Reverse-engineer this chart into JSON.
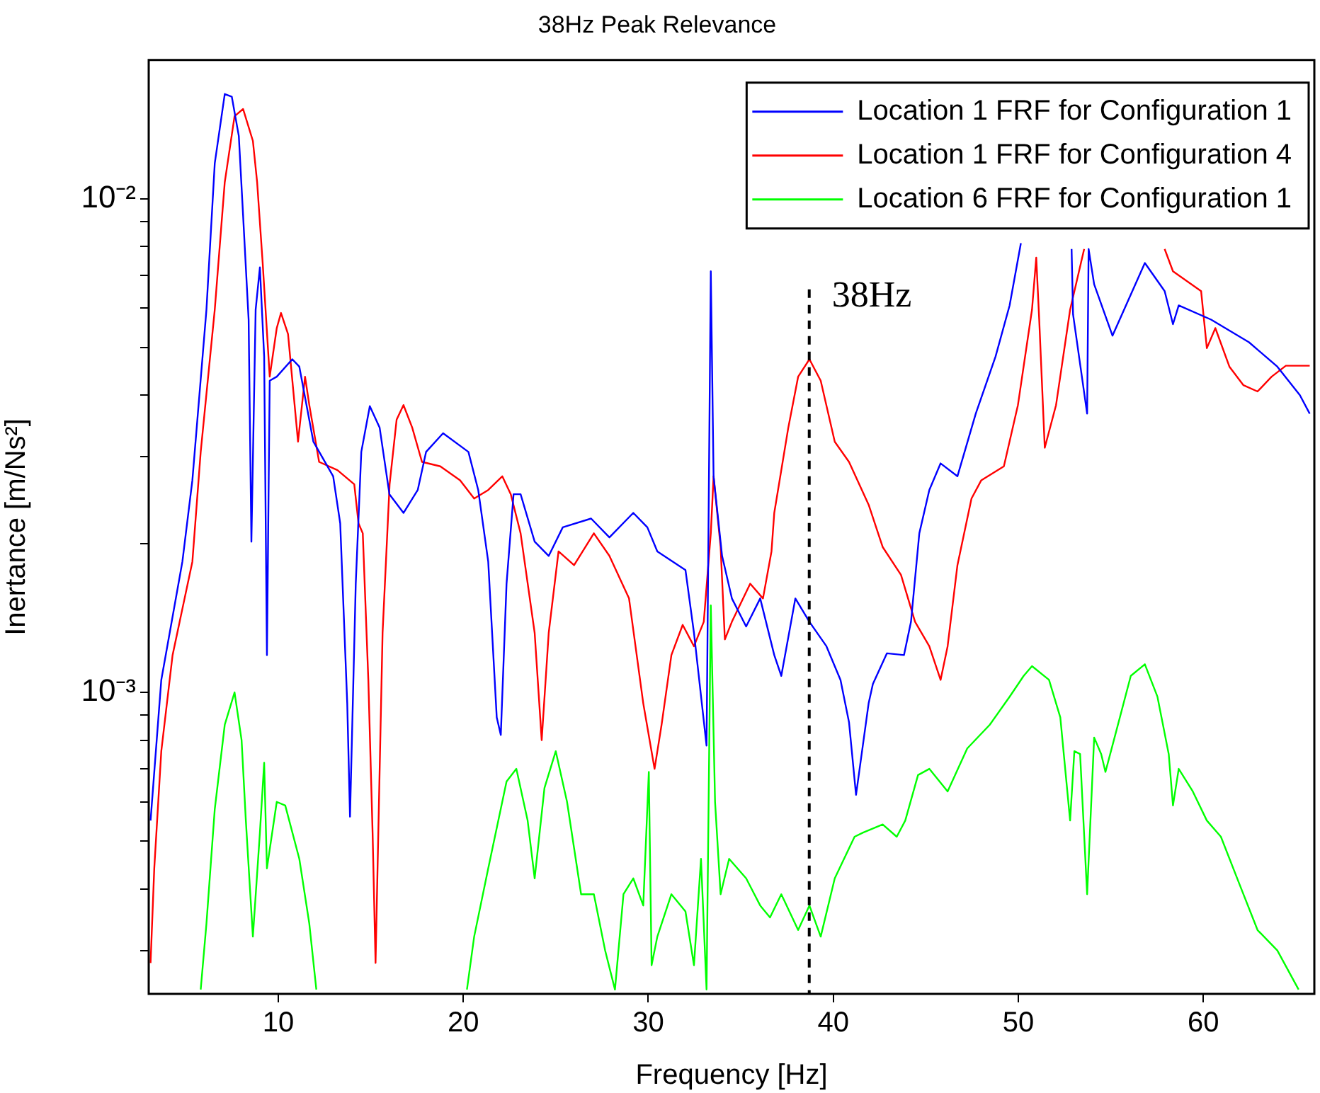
{
  "chart_data": {
    "type": "line",
    "title": "38Hz Peak Relevance",
    "xlabel": "Frequency [Hz]",
    "ylabel": "Inertance [m/Ns²]",
    "log": "y",
    "grid": false,
    "legend": "top right",
    "marker": "none",
    "line_style": "solid",
    "xlim": [
      3,
      66
    ],
    "xticks": [
      10,
      20,
      30,
      40,
      50,
      60
    ],
    "ylim": [
      0.000245,
      0.0191
    ],
    "yticks": [
      {
        "value": 0.0003,
        "label": null
      },
      {
        "value": 0.0004,
        "label": null
      },
      {
        "value": 0.0005,
        "label": null
      },
      {
        "value": 0.0006,
        "label": null
      },
      {
        "value": 0.0007,
        "label": null
      },
      {
        "value": 0.0008,
        "label": null
      },
      {
        "value": 0.0009,
        "label": null
      },
      {
        "value": 0.001,
        "label": "10⁻³"
      },
      {
        "value": 0.002,
        "label": null
      },
      {
        "value": 0.003,
        "label": null
      },
      {
        "value": 0.004,
        "label": null
      },
      {
        "value": 0.005,
        "label": null
      },
      {
        "value": 0.006,
        "label": null
      },
      {
        "value": 0.007,
        "label": null
      },
      {
        "value": 0.008,
        "label": null
      },
      {
        "value": 0.009,
        "label": null
      },
      {
        "value": 0.01,
        "label": "10⁻²"
      }
    ],
    "ref_lines": [
      {
        "axis": "x",
        "value": 38.7,
        "label": "38Hz",
        "color": "#000000",
        "line_style": "dashed"
      }
    ],
    "series": [
      {
        "name": "Location 1 FRF for Configuration 1",
        "color": "#0000ff",
        "x": [
          3.1,
          3.68,
          4.82,
          5.36,
          6.12,
          6.57,
          7.11,
          7.49,
          7.87,
          8.1,
          8.4,
          8.55,
          8.78,
          9.01,
          9.24,
          9.39,
          9.54,
          9.92,
          10.76,
          11.14,
          11.9,
          12.97,
          13.35,
          13.73,
          13.88,
          14.19,
          14.49,
          14.95,
          15.48,
          16.01,
          16.77,
          17.54,
          17.99,
          18.91,
          20.28,
          20.81,
          21.35,
          21.81,
          22.03,
          22.34,
          22.72,
          23.1,
          23.86,
          24.62,
          25.38,
          26.91,
          27.9,
          29.19,
          29.95,
          30.49,
          32.01,
          32.47,
          33.15,
          33.38,
          33.53,
          33.99,
          34.52,
          35.29,
          36.05,
          36.81,
          37.19,
          37.95,
          38.71,
          39.63,
          40.39,
          40.85,
          41.23,
          41.91,
          42.14,
          42.9,
          43.82,
          44.2,
          44.65,
          45.19,
          45.8,
          46.71,
          47.7,
          48.77,
          49.53,
          50.14,
          51.5,
          52.88,
          52.96,
          53.72,
          53.8,
          54.1,
          55.09,
          56.84,
          57.91,
          58.36,
          58.67,
          60.42,
          62.47,
          64.0,
          65.22,
          65.75
        ],
        "values": [
          0.00055,
          0.00106,
          0.00184,
          0.00269,
          0.00596,
          0.0118,
          0.0163,
          0.0161,
          0.0134,
          0.00927,
          0.00569,
          0.00202,
          0.00596,
          0.00726,
          0.00479,
          0.00119,
          0.00428,
          0.00436,
          0.00473,
          0.00457,
          0.00322,
          0.00274,
          0.0022,
          0.00095,
          0.00056,
          0.00166,
          0.00307,
          0.0038,
          0.00344,
          0.00252,
          0.00231,
          0.00257,
          0.00307,
          0.00335,
          0.00307,
          0.00257,
          0.00184,
          0.00089,
          0.00082,
          0.00166,
          0.00252,
          0.00252,
          0.00202,
          0.00189,
          0.00216,
          0.00225,
          0.00206,
          0.00231,
          0.00216,
          0.00193,
          0.00177,
          0.00132,
          0.00078,
          0.00713,
          0.00274,
          0.00189,
          0.00155,
          0.00136,
          0.00155,
          0.00119,
          0.00108,
          0.00155,
          0.00139,
          0.00124,
          0.00106,
          0.00087,
          0.00062,
          0.00095,
          0.00104,
          0.0012,
          0.00119,
          0.00139,
          0.0021,
          0.00257,
          0.00291,
          0.00274,
          0.00367,
          0.00479,
          0.00608,
          0.00813,
          null,
          0.00791,
          0.00583,
          0.00367,
          0.00791,
          0.00671,
          0.00528,
          0.00741,
          0.0065,
          0.00557,
          0.00608,
          0.00569,
          0.00512,
          0.00457,
          0.004,
          0.00367
        ]
      },
      {
        "name": "Location 1 FRF for Configuration 4",
        "color": "#ff0000",
        "x": [
          3.1,
          3.3,
          3.68,
          4.29,
          5.36,
          5.81,
          6.57,
          7.11,
          7.64,
          8.1,
          8.63,
          8.86,
          9.16,
          9.54,
          9.92,
          10.15,
          10.53,
          11.07,
          11.45,
          11.68,
          12.21,
          13.2,
          14.11,
          14.34,
          14.57,
          14.87,
          15.1,
          15.26,
          15.41,
          15.64,
          16.02,
          16.4,
          16.77,
          17.24,
          17.77,
          18.76,
          19.83,
          20.59,
          21.35,
          22.11,
          22.57,
          23.1,
          23.86,
          24.24,
          24.62,
          25.15,
          25.99,
          27.06,
          27.9,
          28.96,
          29.73,
          30.34,
          30.72,
          31.25,
          31.86,
          32.47,
          33.0,
          33.38,
          33.53,
          33.91,
          34.14,
          34.52,
          35.51,
          36.2,
          36.66,
          36.81,
          37.57,
          38.1,
          38.71,
          39.32,
          40.08,
          40.85,
          41.91,
          42.67,
          43.66,
          44.42,
          45.19,
          45.8,
          46.18,
          46.71,
          47.47,
          48.0,
          49.22,
          49.98,
          50.74,
          50.97,
          51.13,
          51.43,
          52.04,
          52.8,
          53.56,
          55.0,
          57.91,
          58.36,
          59.88,
          60.19,
          60.65,
          61.41,
          62.17,
          62.93,
          63.69,
          64.46,
          65.75
        ],
        "values": [
          0.000283,
          0.00044,
          0.00076,
          0.00119,
          0.00184,
          0.00307,
          0.00596,
          0.0108,
          0.0147,
          0.0152,
          0.0131,
          0.0108,
          0.00741,
          0.00436,
          0.00547,
          0.00587,
          0.00532,
          0.00322,
          0.00436,
          0.00382,
          0.00293,
          0.00282,
          0.00264,
          0.0022,
          0.0021,
          0.00106,
          0.00052,
          0.000283,
          0.00052,
          0.00132,
          0.00264,
          0.00357,
          0.00382,
          0.00344,
          0.00293,
          0.00287,
          0.00269,
          0.00247,
          0.00257,
          0.00274,
          0.00252,
          0.0021,
          0.00132,
          0.0008,
          0.00132,
          0.00193,
          0.00181,
          0.0021,
          0.00189,
          0.00155,
          0.00095,
          0.0007,
          0.00086,
          0.00119,
          0.00137,
          0.00124,
          0.00139,
          0.0021,
          0.00274,
          0.00197,
          0.00128,
          0.00139,
          0.00166,
          0.00155,
          0.00193,
          0.00231,
          0.00344,
          0.00436,
          0.00473,
          0.00428,
          0.00322,
          0.00293,
          0.0024,
          0.00197,
          0.00173,
          0.00139,
          0.00124,
          0.00106,
          0.00124,
          0.00181,
          0.00247,
          0.00269,
          0.00287,
          0.00382,
          0.00596,
          0.0076,
          0.00569,
          0.00313,
          0.00382,
          0.00596,
          0.00791,
          null,
          0.00791,
          0.00713,
          0.0065,
          0.00498,
          0.00547,
          0.00457,
          0.00419,
          0.00407,
          0.00436,
          0.00459,
          0.00459
        ]
      },
      {
        "name": "Location 6 FRF for Configuration 1",
        "color": "#00ff00",
        "x": [
          5.81,
          6.12,
          6.57,
          7.11,
          7.64,
          8.02,
          8.25,
          8.63,
          9.01,
          9.24,
          9.39,
          9.92,
          10.38,
          11.14,
          11.68,
          12.06,
          16.0,
          20.2,
          20.59,
          21.35,
          22.34,
          22.87,
          23.48,
          23.86,
          24.39,
          25.0,
          25.61,
          26.37,
          27.06,
          27.67,
          28.2,
          28.66,
          29.19,
          29.73,
          30.03,
          30.18,
          30.49,
          31.25,
          32.01,
          32.47,
          32.85,
          33.15,
          33.38,
          33.61,
          33.91,
          34.37,
          35.29,
          36.05,
          36.58,
          37.19,
          38.1,
          38.71,
          39.32,
          40.08,
          41.15,
          41.61,
          42.67,
          43.43,
          43.89,
          44.58,
          45.19,
          46.18,
          47.24,
          48.46,
          49.53,
          50.29,
          50.74,
          51.66,
          52.27,
          52.8,
          53.03,
          53.34,
          53.72,
          54.1,
          54.48,
          54.71,
          55.24,
          56.08,
          56.84,
          57.52,
          58.13,
          58.36,
          58.67,
          59.43,
          60.19,
          60.95,
          61.94,
          62.93,
          64.0,
          65.15
        ],
        "values": [
          0.00025,
          0.00034,
          0.00058,
          0.00086,
          0.001,
          0.0008,
          0.00055,
          0.00032,
          0.00052,
          0.00072,
          0.00044,
          0.0006,
          0.00059,
          0.00046,
          0.00034,
          0.00025,
          null,
          0.00025,
          0.00032,
          0.00044,
          0.00066,
          0.0007,
          0.00055,
          0.00042,
          0.00064,
          0.00076,
          0.0006,
          0.00039,
          0.00039,
          0.0003,
          0.00025,
          0.00039,
          0.00042,
          0.00037,
          0.00069,
          0.00028,
          0.00032,
          0.00039,
          0.00036,
          0.00028,
          0.00046,
          0.00025,
          0.0015,
          0.0006,
          0.00039,
          0.00046,
          0.00042,
          0.00037,
          0.00035,
          0.00039,
          0.00033,
          0.00037,
          0.00032,
          0.00042,
          0.00051,
          0.00052,
          0.00054,
          0.00051,
          0.00055,
          0.00068,
          0.0007,
          0.00063,
          0.00077,
          0.00086,
          0.00098,
          0.00108,
          0.00113,
          0.00106,
          0.00089,
          0.00055,
          0.00076,
          0.00075,
          0.00039,
          0.00081,
          0.00075,
          0.00069,
          0.00082,
          0.00108,
          0.00114,
          0.00098,
          0.00075,
          0.00059,
          0.0007,
          0.00063,
          0.00055,
          0.00051,
          0.00041,
          0.00033,
          0.0003,
          0.00025
        ]
      }
    ]
  }
}
